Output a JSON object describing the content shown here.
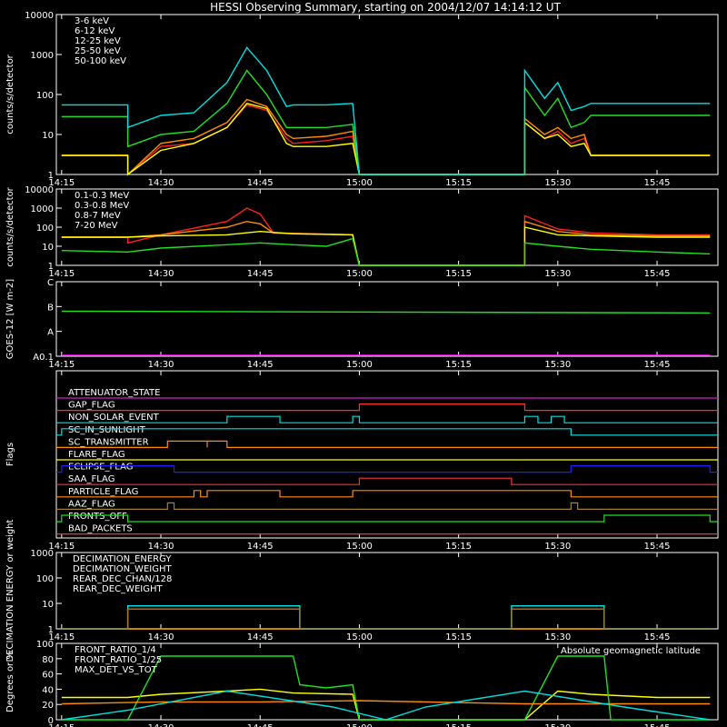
{
  "title": "HESSI Observing Summary, starting on 2004/12/07 14:14:12 UT",
  "time_ticks": [
    "14:15",
    "14:30",
    "14:45",
    "15:00",
    "15:15",
    "15:30",
    "15:45"
  ],
  "chart_data": [
    {
      "type": "line",
      "ylabel": "counts/s/detector",
      "yscale": "log",
      "ylim": [
        1,
        10000
      ],
      "yticks": [
        "1",
        "10",
        "100",
        "1000",
        "10000"
      ],
      "legend_position": "top-left",
      "series": [
        {
          "name": "3-6 keV",
          "color": "#ff2020",
          "x": [
            "14:15",
            "14:25",
            "14:25",
            "14:30",
            "14:35",
            "14:40",
            "14:43",
            "14:46",
            "14:49",
            "14:50",
            "14:55",
            "14:59",
            "15:00",
            "15:25",
            "15:25",
            "15:28",
            "15:30",
            "15:32",
            "15:34",
            "15:35",
            "15:40",
            "15:50",
            "15:53"
          ],
          "y": [
            3,
            3,
            1,
            5,
            6,
            15,
            55,
            40,
            8,
            6,
            7,
            9,
            1,
            1,
            20,
            8,
            12,
            6,
            8,
            3,
            3,
            3,
            3
          ]
        },
        {
          "name": "6-12 keV",
          "color": "#ff8c00",
          "x": [
            "14:15",
            "14:25",
            "14:25",
            "14:30",
            "14:35",
            "14:40",
            "14:43",
            "14:46",
            "14:49",
            "14:50",
            "14:55",
            "14:59",
            "15:00",
            "15:25",
            "15:25",
            "15:28",
            "15:30",
            "15:32",
            "15:34",
            "15:35",
            "15:40",
            "15:50",
            "15:53"
          ],
          "y": [
            3,
            3,
            1,
            6,
            8,
            20,
            75,
            50,
            10,
            8,
            9,
            12,
            1,
            1,
            25,
            10,
            15,
            8,
            10,
            3,
            3,
            3,
            3
          ]
        },
        {
          "name": "12-25 keV",
          "color": "#ffff00",
          "x": [
            "14:15",
            "14:25",
            "14:25",
            "14:30",
            "14:35",
            "14:40",
            "14:43",
            "14:46",
            "14:49",
            "14:50",
            "14:55",
            "14:59",
            "15:00",
            "15:25",
            "15:25",
            "15:28",
            "15:30",
            "15:32",
            "15:34",
            "15:35",
            "15:40",
            "15:50",
            "15:53"
          ],
          "y": [
            3,
            3,
            1,
            4,
            6,
            15,
            60,
            45,
            6,
            5,
            5,
            6,
            1,
            1,
            20,
            8,
            10,
            5,
            6,
            3,
            3,
            3,
            3
          ]
        },
        {
          "name": "25-50 keV",
          "color": "#20e020",
          "x": [
            "14:15",
            "14:25",
            "14:25",
            "14:30",
            "14:35",
            "14:40",
            "14:43",
            "14:46",
            "14:49",
            "14:50",
            "14:55",
            "14:59",
            "15:00",
            "15:25",
            "15:25",
            "15:28",
            "15:30",
            "15:32",
            "15:34",
            "15:35",
            "15:40",
            "15:50",
            "15:53"
          ],
          "y": [
            28,
            28,
            5,
            10,
            12,
            60,
            400,
            100,
            15,
            15,
            15,
            18,
            1,
            1,
            150,
            30,
            80,
            15,
            20,
            30,
            30,
            30,
            30
          ]
        },
        {
          "name": "50-100 keV",
          "color": "#00e0e0",
          "x": [
            "14:15",
            "14:25",
            "14:25",
            "14:30",
            "14:35",
            "14:40",
            "14:43",
            "14:46",
            "14:49",
            "14:50",
            "14:55",
            "14:59",
            "15:00",
            "15:25",
            "15:25",
            "15:28",
            "15:30",
            "15:32",
            "15:34",
            "15:35",
            "15:40",
            "15:50",
            "15:53"
          ],
          "y": [
            55,
            55,
            15,
            30,
            35,
            200,
            1500,
            400,
            50,
            55,
            55,
            60,
            1,
            1,
            400,
            80,
            200,
            40,
            50,
            60,
            60,
            60,
            60
          ]
        }
      ]
    },
    {
      "type": "line",
      "ylabel": "counts/s/detector",
      "yscale": "log",
      "ylim": [
        1,
        10000
      ],
      "yticks": [
        "1",
        "10",
        "100",
        "1000",
        "10000"
      ],
      "legend_position": "top-left",
      "series": [
        {
          "name": "0.1-0.3 MeV",
          "color": "#ff2020",
          "x": [
            "14:15",
            "14:25",
            "14:25",
            "14:30",
            "14:40",
            "14:43",
            "14:45",
            "14:47",
            "14:59",
            "15:00",
            "15:25",
            "15:25",
            "15:30",
            "15:35",
            "15:45",
            "15:53"
          ],
          "y": [
            30,
            30,
            15,
            40,
            200,
            1000,
            500,
            50,
            40,
            1,
            1,
            400,
            80,
            50,
            40,
            40
          ]
        },
        {
          "name": "0.3-0.8 MeV",
          "color": "#ff8c00",
          "x": [
            "14:15",
            "14:25",
            "14:30",
            "14:40",
            "14:43",
            "14:45",
            "14:47",
            "14:59",
            "15:00",
            "15:25",
            "15:25",
            "15:30",
            "15:35",
            "15:45",
            "15:53"
          ],
          "y": [
            30,
            30,
            40,
            100,
            200,
            150,
            50,
            40,
            1,
            1,
            200,
            60,
            40,
            35,
            35
          ]
        },
        {
          "name": "0.8-7 MeV",
          "color": "#ffff00",
          "x": [
            "14:15",
            "14:25",
            "14:30",
            "14:40",
            "14:45",
            "14:50",
            "14:59",
            "15:00",
            "15:25",
            "15:25",
            "15:30",
            "15:35",
            "15:45",
            "15:53"
          ],
          "y": [
            30,
            30,
            35,
            40,
            60,
            45,
            40,
            1,
            1,
            100,
            40,
            35,
            30,
            30
          ]
        },
        {
          "name": "7-20 MeV",
          "color": "#20e020",
          "x": [
            "14:15",
            "14:25",
            "14:30",
            "14:40",
            "14:45",
            "14:50",
            "14:55",
            "14:59",
            "15:00",
            "15:25",
            "15:25",
            "15:30",
            "15:35",
            "15:45",
            "15:53"
          ],
          "y": [
            6,
            5,
            8,
            12,
            15,
            12,
            10,
            25,
            1,
            1,
            15,
            10,
            7,
            5,
            4
          ]
        }
      ]
    },
    {
      "type": "line",
      "ylabel": "GOES-12 [W m-2]",
      "yscale": "log",
      "ylim": [
        1e-08,
        1e-05
      ],
      "yticks": [
        "A0.1",
        "A",
        "B",
        "C"
      ],
      "series": [
        {
          "color": "#20e020",
          "x": [
            "14:15",
            "15:53"
          ],
          "y": [
            6.5e-07,
            5.5e-07
          ]
        },
        {
          "color": "#ff00ff",
          "x": [
            "14:15",
            "15:53"
          ],
          "y": [
            1.1e-08,
            1.1e-08
          ]
        }
      ]
    },
    {
      "type": "line",
      "ylabel": "Flags",
      "flags": [
        {
          "name": "ATTENUATOR_STATE",
          "color": "#d020d0",
          "on": []
        },
        {
          "name": "GAP_FLAG",
          "color": "#ff3030",
          "on": [
            [
              "15:00",
              "15:25"
            ]
          ]
        },
        {
          "name": "NON_SOLAR_EVENT",
          "color": "#00e0e0",
          "on": [
            [
              "14:40",
              "14:48"
            ],
            [
              "14:59",
              "15:00"
            ],
            [
              "15:25",
              "15:27"
            ],
            [
              "15:29",
              "15:31"
            ]
          ]
        },
        {
          "name": "SC_IN_SUNLIGHT",
          "color": "#00e0e0",
          "on": [
            [
              "14:15",
              "15:32"
            ]
          ]
        },
        {
          "name": "SC_TRANSMITTER",
          "color": "#ff8c00",
          "on": [
            [
              "14:31",
              "14:37"
            ],
            [
              "14:37",
              "14:40"
            ]
          ]
        },
        {
          "name": "FLARE_FLAG",
          "color": "#ffff00",
          "on": []
        },
        {
          "name": "ECLIPSE_FLAG",
          "color": "#2020ff",
          "on": [
            [
              "14:15",
              "14:32"
            ],
            [
              "15:32",
              "15:53"
            ]
          ]
        },
        {
          "name": "SAA_FLAG",
          "color": "#ff3030",
          "on": [
            [
              "15:00",
              "15:23"
            ]
          ]
        },
        {
          "name": "PARTICLE_FLAG",
          "color": "#ff8c00",
          "on": [
            [
              "14:35",
              "14:36"
            ],
            [
              "14:37",
              "14:48"
            ],
            [
              "14:59",
              "15:32"
            ]
          ]
        },
        {
          "name": "AAZ_FLAG",
          "color": "#a08030",
          "on": [
            [
              "14:31",
              "14:32"
            ],
            [
              "15:32",
              "15:33"
            ]
          ]
        },
        {
          "name": "FRONTS_OFF",
          "color": "#20e020",
          "on": [
            [
              "14:15",
              "14:25"
            ],
            [
              "15:37",
              "15:53"
            ]
          ]
        },
        {
          "name": "BAD_PACKETS",
          "color": "#ff3030",
          "on": []
        }
      ]
    },
    {
      "type": "line",
      "ylabel": "DECIMATION ENERGY or weight",
      "yscale": "log",
      "ylim": [
        1,
        1000
      ],
      "yticks": [
        "1",
        "10",
        "100",
        "1000"
      ],
      "series": [
        {
          "name": "DECIMATION_ENERGY",
          "color": "#20e020",
          "x": [
            "14:15",
            "15:53"
          ],
          "y": [
            1,
            1
          ]
        },
        {
          "name": "DECIMATION_WEIGHT",
          "color": "#ff8c00",
          "x": [
            "14:15",
            "15:53"
          ],
          "y": [
            1,
            1
          ]
        },
        {
          "name": "REAR_DEC_CHAN/128",
          "color": "#00e0e0",
          "x": [
            "14:15",
            "14:25",
            "14:25",
            "14:51",
            "14:51",
            "15:23",
            "15:23",
            "15:37",
            "15:37",
            "15:53"
          ],
          "y": [
            1,
            1,
            8,
            8,
            1,
            1,
            8,
            8,
            1,
            1
          ]
        },
        {
          "name": "REAR_DEC_WEIGHT",
          "color": "#a08030",
          "x": [
            "14:15",
            "14:25",
            "14:25",
            "14:51",
            "14:51",
            "15:23",
            "15:23",
            "15:37",
            "15:37",
            "15:53"
          ],
          "y": [
            1,
            1,
            6,
            6,
            1,
            1,
            6,
            6,
            1,
            1
          ]
        }
      ]
    },
    {
      "type": "line",
      "ylabel": "Degrees or %",
      "ylim": [
        0,
        120
      ],
      "yticks": [
        "0",
        "20",
        "40",
        "60",
        "80",
        "100"
      ],
      "series": [
        {
          "name": "FRONT_RATIO_1/4",
          "color": "#ffff00",
          "x": [
            "14:15",
            "14:25",
            "14:30",
            "14:40",
            "14:45",
            "14:50",
            "14:59",
            "15:00",
            "15:25",
            "15:30",
            "15:35",
            "15:45",
            "15:53"
          ],
          "y": [
            35,
            35,
            40,
            45,
            48,
            42,
            40,
            0,
            0,
            45,
            40,
            35,
            35
          ]
        },
        {
          "name": "FRONT_RATIO_1/25",
          "color": "#20e020",
          "x": [
            "14:15",
            "14:25",
            "14:30",
            "14:40",
            "14:45",
            "14:50",
            "14:51",
            "14:55",
            "14:59",
            "15:00",
            "15:25",
            "15:30",
            "15:37",
            "15:38",
            "15:53"
          ],
          "y": [
            0,
            0,
            100,
            100,
            100,
            100,
            55,
            50,
            55,
            0,
            0,
            100,
            100,
            0,
            0
          ]
        },
        {
          "name": "MAX_DET_VS_TOT",
          "color": "#ff8c00",
          "x": [
            "14:15",
            "14:30",
            "14:45",
            "15:00",
            "15:25",
            "15:35",
            "15:45",
            "15:53"
          ],
          "y": [
            25,
            28,
            28,
            30,
            25,
            25,
            25,
            25
          ]
        },
        {
          "name": "Absolute geomagnetic latitude",
          "color": "#00e0e0",
          "x": [
            "14:15",
            "14:25",
            "14:40",
            "14:56",
            "15:04",
            "15:10",
            "15:25",
            "15:40",
            "15:53"
          ],
          "y": [
            0,
            15,
            45,
            20,
            0,
            20,
            45,
            20,
            0
          ]
        }
      ]
    }
  ]
}
